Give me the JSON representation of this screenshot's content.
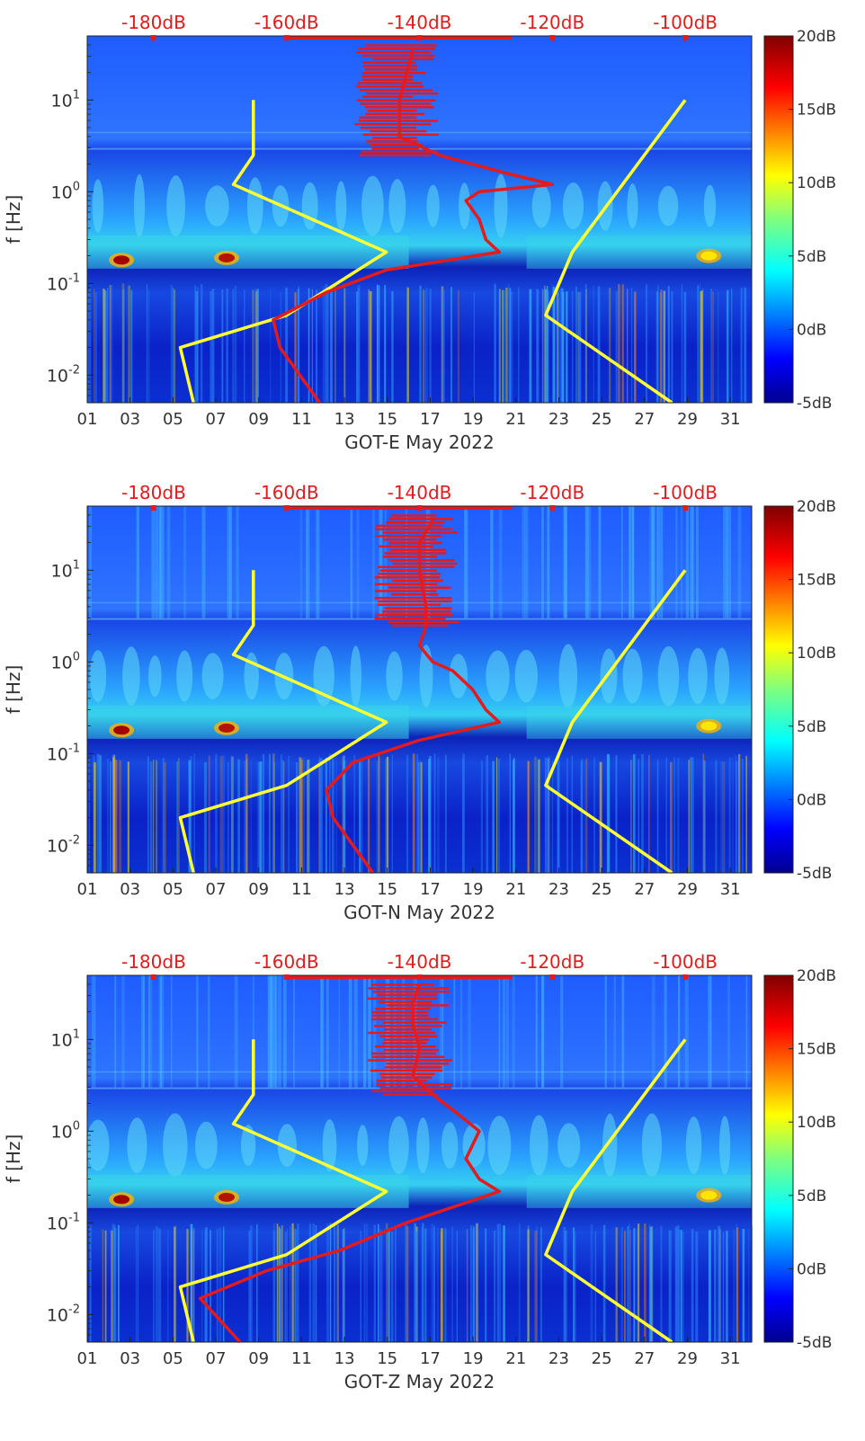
{
  "colors": {
    "noise_model_lines": "#ffff33",
    "psd_line": "#e41a1c",
    "top_axis_text": "#e41a1c",
    "axis_text": "#333333"
  },
  "colormap": "jet",
  "chart_data": [
    {
      "type": "heatmap",
      "xlabel": "GOT-E May 2022",
      "ylabel": "f [Hz]",
      "x_tick_labels": [
        "01",
        "03",
        "05",
        "07",
        "09",
        "11",
        "13",
        "15",
        "17",
        "19",
        "21",
        "23",
        "25",
        "27",
        "29",
        "31"
      ],
      "x_range_days": [
        1,
        32
      ],
      "y_scale": "log",
      "y_range_hz": [
        0.005,
        50
      ],
      "y_tick_labels": [
        "10^-2",
        "10^-1",
        "10^0",
        "10^1"
      ],
      "y_tick_values": [
        0.01,
        0.1,
        1,
        10
      ],
      "top_axis_labels": [
        "-180dB",
        "-160dB",
        "-140dB",
        "-120dB",
        "-100dB"
      ],
      "top_axis_values": [
        -180,
        -160,
        -140,
        -120,
        -100
      ],
      "top_axis_range_db": [
        -190,
        -90
      ],
      "colorbar_labels": [
        "20dB",
        "15dB",
        "10dB",
        "5dB",
        "0dB",
        "-5dB"
      ],
      "colorbar_range_db": [
        -5,
        20
      ],
      "noise_model_nhnm": {
        "db": [
          -102,
          -121,
          -117,
          -100
        ],
        "f": [
          0.005,
          0.045,
          0.22,
          10
        ]
      },
      "noise_model_nlnm": {
        "db": [
          -174,
          -176,
          -160,
          -145,
          -168,
          -165,
          -165
        ],
        "f": [
          0.005,
          0.02,
          0.045,
          0.22,
          1.2,
          2.5,
          10
        ]
      },
      "psd_curve": {
        "db": [
          -155,
          -161,
          -162,
          -154,
          -145,
          -128,
          -130,
          -131,
          -133,
          -131,
          -120,
          -127,
          -137,
          -143,
          -143,
          -141
        ],
        "f": [
          0.005,
          0.02,
          0.04,
          0.08,
          0.14,
          0.22,
          0.3,
          0.5,
          0.8,
          1.0,
          1.2,
          1.6,
          2.5,
          4,
          10,
          35
        ]
      },
      "microseism_hotspots": [
        "day 2.6 @ 0.18 Hz",
        "day 7.5 @ 0.19 Hz",
        "day 30 @ 0.2 Hz"
      ]
    },
    {
      "type": "heatmap",
      "xlabel": "GOT-N May 2022",
      "ylabel": "f [Hz]",
      "x_tick_labels": [
        "01",
        "03",
        "05",
        "07",
        "09",
        "11",
        "13",
        "15",
        "17",
        "19",
        "21",
        "23",
        "25",
        "27",
        "29",
        "31"
      ],
      "x_range_days": [
        1,
        32
      ],
      "y_scale": "log",
      "y_range_hz": [
        0.005,
        50
      ],
      "y_tick_labels": [
        "10^-2",
        "10^-1",
        "10^0",
        "10^1"
      ],
      "y_tick_values": [
        0.01,
        0.1,
        1,
        10
      ],
      "top_axis_labels": [
        "-180dB",
        "-160dB",
        "-140dB",
        "-120dB",
        "-100dB"
      ],
      "top_axis_values": [
        -180,
        -160,
        -140,
        -120,
        -100
      ],
      "top_axis_range_db": [
        -190,
        -90
      ],
      "colorbar_labels": [
        "20dB",
        "15dB",
        "10dB",
        "5dB",
        "0dB",
        "-5dB"
      ],
      "colorbar_range_db": [
        -5,
        20
      ],
      "noise_model_nhnm": {
        "db": [
          -102,
          -121,
          -117,
          -100
        ],
        "f": [
          0.005,
          0.045,
          0.22,
          10
        ]
      },
      "noise_model_nlnm": {
        "db": [
          -174,
          -176,
          -160,
          -145,
          -168,
          -165,
          -165
        ],
        "f": [
          0.005,
          0.02,
          0.045,
          0.22,
          1.2,
          2.5,
          10
        ]
      },
      "psd_curve": {
        "db": [
          -147,
          -153,
          -154,
          -150,
          -140,
          -128,
          -130,
          -132,
          -135,
          -138,
          -140,
          -139,
          -139,
          -140,
          -140,
          -138
        ],
        "f": [
          0.005,
          0.02,
          0.04,
          0.08,
          0.14,
          0.22,
          0.3,
          0.5,
          0.8,
          1.0,
          1.5,
          2.5,
          4,
          10,
          20,
          35
        ]
      },
      "microseism_hotspots": [
        "day 2.6 @ 0.18 Hz",
        "day 7.5 @ 0.19 Hz",
        "day 30 @ 0.2 Hz"
      ]
    },
    {
      "type": "heatmap",
      "xlabel": "GOT-Z May 2022",
      "ylabel": "f [Hz]",
      "x_tick_labels": [
        "01",
        "03",
        "05",
        "07",
        "09",
        "11",
        "13",
        "15",
        "17",
        "19",
        "21",
        "23",
        "25",
        "27",
        "29",
        "31"
      ],
      "x_range_days": [
        1,
        32
      ],
      "y_scale": "log",
      "y_range_hz": [
        0.005,
        50
      ],
      "y_tick_labels": [
        "10^-2",
        "10^-1",
        "10^0",
        "10^1"
      ],
      "y_tick_values": [
        0.01,
        0.1,
        1,
        10
      ],
      "top_axis_labels": [
        "-180dB",
        "-160dB",
        "-140dB",
        "-120dB",
        "-100dB"
      ],
      "top_axis_values": [
        -180,
        -160,
        -140,
        -120,
        -100
      ],
      "top_axis_range_db": [
        -190,
        -90
      ],
      "colorbar_labels": [
        "20dB",
        "15dB",
        "10dB",
        "5dB",
        "0dB",
        "-5dB"
      ],
      "colorbar_range_db": [
        -5,
        20
      ],
      "noise_model_nhnm": {
        "db": [
          -102,
          -121,
          -117,
          -100
        ],
        "f": [
          0.005,
          0.045,
          0.22,
          10
        ]
      },
      "noise_model_nlnm": {
        "db": [
          -174,
          -176,
          -160,
          -145,
          -168,
          -165,
          -165
        ],
        "f": [
          0.005,
          0.02,
          0.045,
          0.22,
          1.2,
          2.5,
          10
        ]
      },
      "psd_curve": {
        "db": [
          -167,
          -173,
          -163,
          -152,
          -142,
          -128,
          -131,
          -133,
          -131,
          -134,
          -138,
          -141,
          -140,
          -141,
          -141,
          -140
        ],
        "f": [
          0.005,
          0.015,
          0.03,
          0.05,
          0.1,
          0.22,
          0.3,
          0.5,
          1.0,
          1.5,
          2.5,
          4,
          8,
          15,
          25,
          40
        ]
      },
      "microseism_hotspots": [
        "day 2.6 @ 0.18 Hz",
        "day 7.5 @ 0.19 Hz",
        "day 30 @ 0.2 Hz"
      ]
    }
  ]
}
